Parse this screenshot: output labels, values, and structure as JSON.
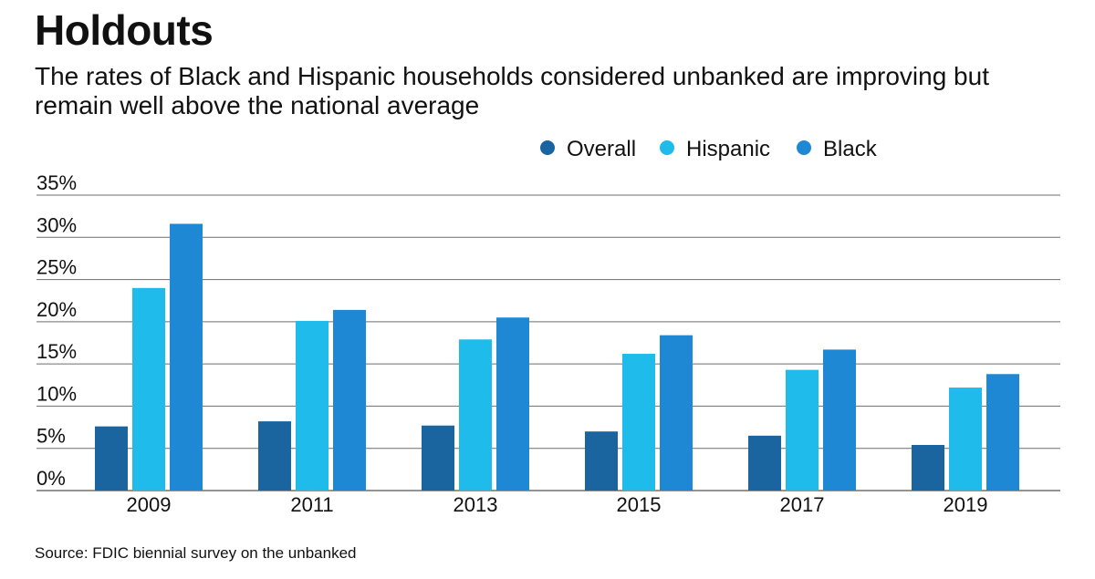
{
  "header": {
    "title": "Holdouts",
    "subtitle": "The rates of Black and Hispanic households considered unbanked are improving but remain well above the national average"
  },
  "footer": {
    "source": "Source: FDIC biennial survey on the unbanked"
  },
  "chart_data": {
    "type": "bar",
    "categories": [
      "2009",
      "2011",
      "2013",
      "2015",
      "2017",
      "2019"
    ],
    "series": [
      {
        "name": "Overall",
        "color": "#1a65a0",
        "values": [
          7.6,
          8.2,
          7.7,
          7.0,
          6.5,
          5.4
        ]
      },
      {
        "name": "Hispanic",
        "color": "#1fbbea",
        "values": [
          24.0,
          20.1,
          17.9,
          16.2,
          14.3,
          12.2
        ]
      },
      {
        "name": "Black",
        "color": "#1e88d4",
        "values": [
          31.6,
          21.4,
          20.5,
          18.4,
          16.7,
          13.8
        ]
      }
    ],
    "yticks": [
      "0%",
      "5%",
      "10%",
      "15%",
      "20%",
      "25%",
      "30%",
      "35%"
    ],
    "ylim": [
      0,
      35
    ],
    "xlabel": "",
    "ylabel": "",
    "grid": true,
    "legend_position": "top-right"
  }
}
